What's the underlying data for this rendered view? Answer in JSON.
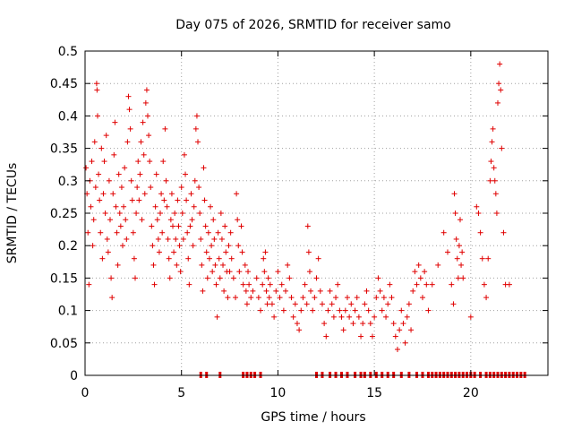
{
  "chart_data": {
    "type": "scatter",
    "title": "Day 075 of 2026, SRMTID for receiver samo",
    "xlabel": "GPS time / hours",
    "ylabel": "SRMTID / TECUs",
    "xlim": [
      0,
      24
    ],
    "ylim": [
      0,
      0.5
    ],
    "xticks": [
      0,
      5,
      10,
      15,
      20
    ],
    "xtick_labels": [
      "0",
      "5",
      "10",
      "15",
      "20"
    ],
    "yticks": [
      0,
      0.05,
      0.1,
      0.15,
      0.2,
      0.25,
      0.3,
      0.35,
      0.4,
      0.45,
      0.5
    ],
    "ytick_labels": [
      "0",
      "0.05",
      "0.1",
      "0.15",
      "0.2",
      "0.25",
      "0.3",
      "0.35",
      "0.4",
      "0.45",
      "0.5"
    ],
    "grid": true,
    "marker": "+",
    "color": "#e00000",
    "series": [
      {
        "name": "SRMTID",
        "points": [
          [
            0.05,
            0.32
          ],
          [
            0.1,
            0.28
          ],
          [
            0.15,
            0.22
          ],
          [
            0.2,
            0.14
          ],
          [
            0.25,
            0.3
          ],
          [
            0.3,
            0.26
          ],
          [
            0.35,
            0.33
          ],
          [
            0.4,
            0.2
          ],
          [
            0.45,
            0.24
          ],
          [
            0.5,
            0.36
          ],
          [
            0.55,
            0.29
          ],
          [
            0.6,
            0.45
          ],
          [
            0.62,
            0.44
          ],
          [
            0.65,
            0.4
          ],
          [
            0.7,
            0.31
          ],
          [
            0.75,
            0.27
          ],
          [
            0.8,
            0.22
          ],
          [
            0.85,
            0.35
          ],
          [
            0.9,
            0.18
          ],
          [
            0.95,
            0.28
          ],
          [
            1.0,
            0.33
          ],
          [
            1.05,
            0.25
          ],
          [
            1.1,
            0.37
          ],
          [
            1.15,
            0.21
          ],
          [
            1.2,
            0.19
          ],
          [
            1.25,
            0.3
          ],
          [
            1.3,
            0.24
          ],
          [
            1.35,
            0.15
          ],
          [
            1.4,
            0.12
          ],
          [
            1.45,
            0.28
          ],
          [
            1.5,
            0.34
          ],
          [
            1.55,
            0.39
          ],
          [
            1.6,
            0.26
          ],
          [
            1.65,
            0.22
          ],
          [
            1.7,
            0.17
          ],
          [
            1.75,
            0.31
          ],
          [
            1.8,
            0.25
          ],
          [
            1.85,
            0.23
          ],
          [
            1.9,
            0.29
          ],
          [
            1.95,
            0.2
          ],
          [
            2.0,
            0.26
          ],
          [
            2.05,
            0.32
          ],
          [
            2.1,
            0.24
          ],
          [
            2.15,
            0.21
          ],
          [
            2.2,
            0.36
          ],
          [
            2.25,
            0.43
          ],
          [
            2.3,
            0.41
          ],
          [
            2.35,
            0.38
          ],
          [
            2.4,
            0.3
          ],
          [
            2.45,
            0.27
          ],
          [
            2.5,
            0.22
          ],
          [
            2.55,
            0.18
          ],
          [
            2.6,
            0.15
          ],
          [
            2.65,
            0.25
          ],
          [
            2.7,
            0.29
          ],
          [
            2.75,
            0.33
          ],
          [
            2.8,
            0.27
          ],
          [
            2.85,
            0.31
          ],
          [
            2.9,
            0.36
          ],
          [
            2.95,
            0.24
          ],
          [
            3.0,
            0.39
          ],
          [
            3.05,
            0.34
          ],
          [
            3.1,
            0.28
          ],
          [
            3.15,
            0.42
          ],
          [
            3.2,
            0.44
          ],
          [
            3.25,
            0.4
          ],
          [
            3.3,
            0.37
          ],
          [
            3.35,
            0.33
          ],
          [
            3.4,
            0.29
          ],
          [
            3.45,
            0.23
          ],
          [
            3.5,
            0.2
          ],
          [
            3.55,
            0.17
          ],
          [
            3.6,
            0.14
          ],
          [
            3.65,
            0.26
          ],
          [
            3.7,
            0.31
          ],
          [
            3.75,
            0.24
          ],
          [
            3.8,
            0.21
          ],
          [
            3.85,
            0.19
          ],
          [
            3.9,
            0.25
          ],
          [
            3.95,
            0.28
          ],
          [
            4.0,
            0.22
          ],
          [
            4.05,
            0.33
          ],
          [
            4.1,
            0.27
          ],
          [
            4.15,
            0.38
          ],
          [
            4.2,
            0.3
          ],
          [
            4.25,
            0.26
          ],
          [
            4.3,
            0.21
          ],
          [
            4.35,
            0.18
          ],
          [
            4.4,
            0.15
          ],
          [
            4.45,
            0.24
          ],
          [
            4.5,
            0.28
          ],
          [
            4.55,
            0.23
          ],
          [
            4.6,
            0.19
          ],
          [
            4.65,
            0.25
          ],
          [
            4.7,
            0.21
          ],
          [
            4.75,
            0.17
          ],
          [
            4.8,
            0.27
          ],
          [
            4.85,
            0.23
          ],
          [
            4.9,
            0.2
          ],
          [
            4.95,
            0.16
          ],
          [
            5.0,
            0.29
          ],
          [
            5.05,
            0.25
          ],
          [
            5.1,
            0.21
          ],
          [
            5.15,
            0.34
          ],
          [
            5.2,
            0.31
          ],
          [
            5.25,
            0.27
          ],
          [
            5.3,
            0.22
          ],
          [
            5.35,
            0.18
          ],
          [
            5.4,
            0.14
          ],
          [
            5.45,
            0.23
          ],
          [
            5.5,
            0.28
          ],
          [
            5.55,
            0.24
          ],
          [
            5.6,
            0.2
          ],
          [
            5.65,
            0.26
          ],
          [
            5.7,
            0.3
          ],
          [
            5.75,
            0.38
          ],
          [
            5.8,
            0.4
          ],
          [
            5.85,
            0.36
          ],
          [
            5.9,
            0.29
          ],
          [
            5.95,
            0.25
          ],
          [
            6.0,
            0.21
          ],
          [
            6.05,
            0.17
          ],
          [
            6.1,
            0.13
          ],
          [
            6.15,
            0.32
          ],
          [
            6.2,
            0.27
          ],
          [
            6.25,
            0.23
          ],
          [
            6.3,
            0.19
          ],
          [
            6.35,
            0.15
          ],
          [
            6.4,
            0.22
          ],
          [
            6.45,
            0.18
          ],
          [
            6.5,
            0.26
          ],
          [
            6.55,
            0.2
          ],
          [
            6.6,
            0.16
          ],
          [
            6.65,
            0.24
          ],
          [
            6.7,
            0.21
          ],
          [
            6.75,
            0.17
          ],
          [
            6.8,
            0.14
          ],
          [
            6.85,
            0.09
          ],
          [
            6.9,
            0.22
          ],
          [
            6.95,
            0.18
          ],
          [
            7.0,
            0.15
          ],
          [
            7.05,
            0.25
          ],
          [
            7.1,
            0.21
          ],
          [
            7.15,
            0.17
          ],
          [
            7.2,
            0.13
          ],
          [
            7.25,
            0.23
          ],
          [
            7.3,
            0.19
          ],
          [
            7.35,
            0.16
          ],
          [
            7.4,
            0.12
          ],
          [
            7.45,
            0.2
          ],
          [
            7.5,
            0.16
          ],
          [
            7.55,
            0.22
          ],
          [
            7.6,
            0.18
          ],
          [
            7.7,
            0.15
          ],
          [
            7.8,
            0.12
          ],
          [
            7.85,
            0.28
          ],
          [
            7.9,
            0.24
          ],
          [
            7.95,
            0.2
          ],
          [
            8.0,
            0.16
          ],
          [
            8.1,
            0.23
          ],
          [
            8.15,
            0.19
          ],
          [
            8.2,
            0.14
          ],
          [
            8.3,
            0.17
          ],
          [
            8.35,
            0.13
          ],
          [
            8.4,
            0.11
          ],
          [
            8.45,
            0.16
          ],
          [
            8.5,
            0.14
          ],
          [
            8.6,
            0.12
          ],
          [
            8.7,
            0.13
          ],
          [
            8.9,
            0.15
          ],
          [
            9.0,
            0.12
          ],
          [
            9.1,
            0.1
          ],
          [
            9.2,
            0.14
          ],
          [
            9.25,
            0.18
          ],
          [
            9.3,
            0.16
          ],
          [
            9.35,
            0.19
          ],
          [
            9.4,
            0.13
          ],
          [
            9.45,
            0.11
          ],
          [
            9.5,
            0.15
          ],
          [
            9.55,
            0.12
          ],
          [
            9.6,
            0.14
          ],
          [
            9.7,
            0.11
          ],
          [
            9.8,
            0.09
          ],
          [
            9.9,
            0.13
          ],
          [
            10.0,
            0.16
          ],
          [
            10.1,
            0.12
          ],
          [
            10.2,
            0.14
          ],
          [
            10.3,
            0.1
          ],
          [
            10.4,
            0.13
          ],
          [
            10.5,
            0.17
          ],
          [
            10.6,
            0.15
          ],
          [
            10.7,
            0.12
          ],
          [
            10.8,
            0.09
          ],
          [
            10.9,
            0.11
          ],
          [
            11.0,
            0.08
          ],
          [
            11.1,
            0.07
          ],
          [
            11.2,
            0.1
          ],
          [
            11.3,
            0.12
          ],
          [
            11.4,
            0.14
          ],
          [
            11.5,
            0.11
          ],
          [
            11.55,
            0.23
          ],
          [
            11.6,
            0.19
          ],
          [
            11.65,
            0.16
          ],
          [
            11.7,
            0.13
          ],
          [
            11.8,
            0.1
          ],
          [
            11.9,
            0.12
          ],
          [
            12.0,
            0.15
          ],
          [
            12.1,
            0.18
          ],
          [
            12.2,
            0.13
          ],
          [
            12.3,
            0.11
          ],
          [
            12.4,
            0.08
          ],
          [
            12.5,
            0.06
          ],
          [
            12.6,
            0.1
          ],
          [
            12.7,
            0.13
          ],
          [
            12.8,
            0.11
          ],
          [
            12.9,
            0.09
          ],
          [
            13.0,
            0.12
          ],
          [
            13.1,
            0.14
          ],
          [
            13.2,
            0.1
          ],
          [
            13.3,
            0.09
          ],
          [
            13.4,
            0.07
          ],
          [
            13.5,
            0.1
          ],
          [
            13.6,
            0.12
          ],
          [
            13.7,
            0.09
          ],
          [
            13.8,
            0.11
          ],
          [
            13.9,
            0.08
          ],
          [
            14.0,
            0.1
          ],
          [
            14.1,
            0.12
          ],
          [
            14.2,
            0.09
          ],
          [
            14.3,
            0.06
          ],
          [
            14.4,
            0.08
          ],
          [
            14.5,
            0.11
          ],
          [
            14.6,
            0.13
          ],
          [
            14.7,
            0.1
          ],
          [
            14.8,
            0.08
          ],
          [
            14.9,
            0.06
          ],
          [
            15.0,
            0.09
          ],
          [
            15.1,
            0.12
          ],
          [
            15.2,
            0.15
          ],
          [
            15.3,
            0.13
          ],
          [
            15.4,
            0.1
          ],
          [
            15.5,
            0.12
          ],
          [
            15.6,
            0.09
          ],
          [
            15.7,
            0.11
          ],
          [
            15.8,
            0.14
          ],
          [
            15.9,
            0.12
          ],
          [
            16.0,
            0.08
          ],
          [
            16.1,
            0.06
          ],
          [
            16.2,
            0.04
          ],
          [
            16.3,
            0.07
          ],
          [
            16.4,
            0.1
          ],
          [
            16.5,
            0.08
          ],
          [
            16.6,
            0.05
          ],
          [
            16.7,
            0.09
          ],
          [
            16.8,
            0.11
          ],
          [
            16.9,
            0.07
          ],
          [
            17.0,
            0.13
          ],
          [
            17.1,
            0.16
          ],
          [
            17.2,
            0.14
          ],
          [
            17.3,
            0.17
          ],
          [
            17.4,
            0.15
          ],
          [
            17.5,
            0.12
          ],
          [
            17.6,
            0.16
          ],
          [
            17.7,
            0.14
          ],
          [
            17.8,
            0.1
          ],
          [
            18.0,
            0.14
          ],
          [
            18.3,
            0.17
          ],
          [
            18.6,
            0.22
          ],
          [
            18.8,
            0.19
          ],
          [
            19.0,
            0.14
          ],
          [
            19.1,
            0.11
          ],
          [
            19.15,
            0.28
          ],
          [
            19.2,
            0.25
          ],
          [
            19.25,
            0.21
          ],
          [
            19.3,
            0.18
          ],
          [
            19.35,
            0.15
          ],
          [
            19.4,
            0.2
          ],
          [
            19.45,
            0.24
          ],
          [
            19.5,
            0.17
          ],
          [
            19.55,
            0.19
          ],
          [
            19.6,
            0.15
          ],
          [
            20.0,
            0.09
          ],
          [
            20.3,
            0.26
          ],
          [
            20.4,
            0.25
          ],
          [
            20.5,
            0.22
          ],
          [
            20.6,
            0.18
          ],
          [
            20.7,
            0.14
          ],
          [
            20.8,
            0.12
          ],
          [
            20.9,
            0.18
          ],
          [
            21.0,
            0.3
          ],
          [
            21.05,
            0.33
          ],
          [
            21.1,
            0.36
          ],
          [
            21.15,
            0.38
          ],
          [
            21.2,
            0.32
          ],
          [
            21.25,
            0.3
          ],
          [
            21.3,
            0.28
          ],
          [
            21.35,
            0.25
          ],
          [
            21.4,
            0.42
          ],
          [
            21.45,
            0.45
          ],
          [
            21.5,
            0.48
          ],
          [
            21.55,
            0.44
          ],
          [
            21.6,
            0.35
          ],
          [
            21.7,
            0.22
          ],
          [
            21.8,
            0.14
          ],
          [
            22.0,
            0.14
          ]
        ]
      }
    ],
    "zero_markers": [
      6.0,
      6.3,
      7.0,
      8.2,
      8.4,
      8.6,
      8.8,
      9.1,
      12.0,
      12.3,
      12.7,
      13.0,
      13.3,
      13.6,
      14.0,
      14.3,
      14.5,
      14.8,
      15.1,
      15.4,
      15.7,
      16.0,
      16.4,
      16.8,
      17.2,
      17.5,
      17.8,
      18.0,
      18.2,
      18.4,
      18.6,
      18.8,
      19.0,
      19.2,
      19.4,
      19.6,
      19.8,
      20.0,
      20.2,
      20.5,
      20.8,
      21.0,
      21.2,
      21.4,
      21.6,
      21.8,
      22.0,
      22.2,
      22.4,
      22.6,
      22.8
    ]
  }
}
